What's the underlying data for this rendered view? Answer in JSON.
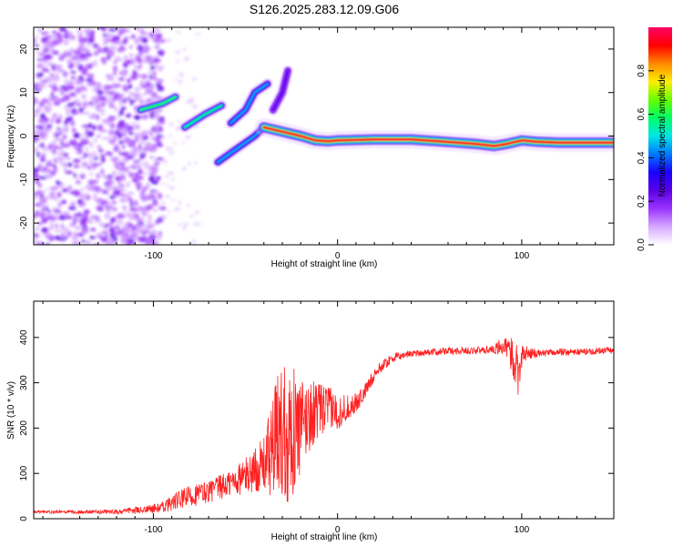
{
  "title": "S126.2025.283.12.09.G06",
  "chart_data": [
    {
      "type": "heatmap",
      "xlabel": "Height of straight line (km)",
      "ylabel": "Frequency (Hz)",
      "xlim": [
        -165,
        150
      ],
      "ylim": [
        -25,
        25
      ],
      "xticks": [
        -100,
        0,
        100
      ],
      "yticks": [
        -20,
        -10,
        0,
        10,
        20
      ],
      "xtick_labels": [
        "-100",
        "0",
        "100"
      ],
      "ytick_labels": [
        "-20",
        "-10",
        "0",
        "10",
        "20"
      ],
      "colorbar": {
        "label": "Normalized spectral amplitude",
        "range": [
          0,
          1
        ],
        "ticks": [
          0.0,
          0.2,
          0.4,
          0.6,
          0.8
        ],
        "tick_labels": [
          "0.0",
          "0.2",
          "0.4",
          "0.6",
          "0.8"
        ],
        "colors": [
          "#ffffff",
          "#d6a8ff",
          "#9a33ff",
          "#5b00e6",
          "#1a00ff",
          "#0078ff",
          "#00e6e6",
          "#00ff66",
          "#66ff00",
          "#ffee00",
          "#ff8800",
          "#ff0000",
          "#ff0066"
        ]
      },
      "features": [
        {
          "name": "noise",
          "x_range": [
            -165,
            -95
          ],
          "f_range": [
            -25,
            25
          ],
          "amplitude": 0.1
        },
        {
          "name": "branch-1",
          "points": [
            [
              -107,
              6
            ],
            [
              -95,
              7.5
            ],
            [
              -88,
              9
            ]
          ],
          "amplitude": 0.6
        },
        {
          "name": "branch-2",
          "points": [
            [
              -83,
              2
            ],
            [
              -72,
              5
            ],
            [
              -63,
              7
            ]
          ],
          "amplitude": 0.55
        },
        {
          "name": "branch-3",
          "points": [
            [
              -58,
              3
            ],
            [
              -50,
              6
            ],
            [
              -45,
              10
            ],
            [
              -38,
              12
            ]
          ],
          "amplitude": 0.45
        },
        {
          "name": "branch-4",
          "points": [
            [
              -65,
              -6
            ],
            [
              -55,
              -3
            ],
            [
              -45,
              0
            ],
            [
              -40,
              2
            ]
          ],
          "amplitude": 0.45
        },
        {
          "name": "branch-5",
          "points": [
            [
              -35,
              6
            ],
            [
              -30,
              10
            ],
            [
              -27,
              15
            ]
          ],
          "amplitude": 0.25
        },
        {
          "name": "main-track",
          "points": [
            [
              -40,
              2
            ],
            [
              -30,
              1
            ],
            [
              -20,
              0
            ],
            [
              -12,
              -1
            ],
            [
              -5,
              -1.2
            ],
            [
              0,
              -1
            ],
            [
              20,
              -0.8
            ],
            [
              40,
              -0.8
            ],
            [
              55,
              -1.2
            ],
            [
              65,
              -1.5
            ],
            [
              75,
              -1.8
            ],
            [
              85,
              -2.3
            ],
            [
              92,
              -1.8
            ],
            [
              100,
              -1
            ],
            [
              108,
              -1.3
            ],
            [
              120,
              -1.5
            ],
            [
              140,
              -1.5
            ],
            [
              150,
              -1.5
            ]
          ],
          "amplitude": 0.95
        }
      ]
    },
    {
      "type": "line",
      "xlabel": "Height of straight line (km)",
      "ylabel": "SNR (10 * v/v)",
      "xlim": [
        -165,
        150
      ],
      "ylim": [
        0,
        480
      ],
      "xticks": [
        -100,
        0,
        100
      ],
      "yticks": [
        0,
        100,
        200,
        300,
        400
      ],
      "xtick_labels": [
        "-100",
        "0",
        "100"
      ],
      "ytick_labels": [
        "0",
        "100",
        "200",
        "300",
        "400"
      ],
      "series": [
        {
          "name": "SNR",
          "color": "#ff2020",
          "x": [
            -165,
            -140,
            -120,
            -105,
            -95,
            -90,
            -80,
            -70,
            -60,
            -50,
            -40,
            -35,
            -30,
            -25,
            -20,
            -15,
            -10,
            -5,
            0,
            5,
            10,
            15,
            20,
            25,
            30,
            40,
            60,
            80,
            90,
            95,
            98,
            100,
            105,
            110,
            120,
            130,
            140,
            150
          ],
          "values": [
            15,
            15,
            15,
            20,
            25,
            35,
            50,
            60,
            75,
            95,
            120,
            160,
            200,
            190,
            200,
            230,
            240,
            245,
            235,
            245,
            255,
            280,
            320,
            340,
            355,
            365,
            370,
            372,
            380,
            360,
            330,
            360,
            365,
            365,
            368,
            368,
            370,
            372
          ],
          "noise": [
            3,
            4,
            5,
            8,
            12,
            18,
            25,
            25,
            30,
            40,
            60,
            120,
            170,
            150,
            110,
            80,
            60,
            50,
            40,
            30,
            22,
            18,
            15,
            12,
            10,
            8,
            8,
            8,
            20,
            40,
            60,
            30,
            12,
            8,
            8,
            8,
            8,
            8
          ]
        }
      ]
    }
  ]
}
